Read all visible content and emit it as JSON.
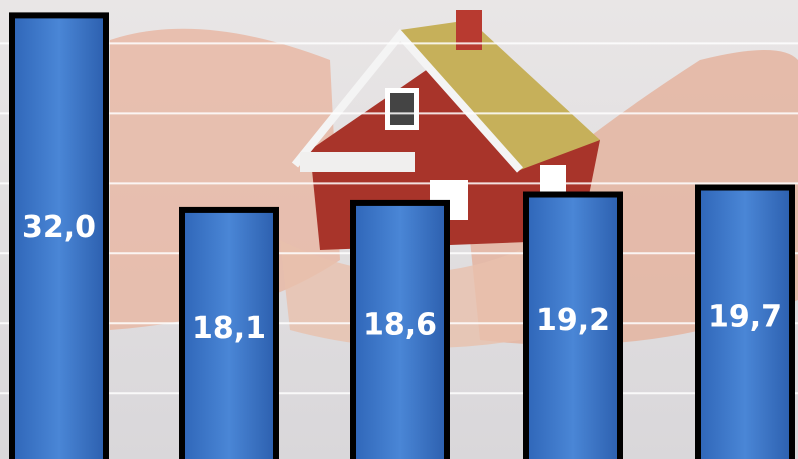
{
  "chart_data": {
    "type": "bar",
    "categories": [
      null,
      null,
      null,
      null,
      null
    ],
    "values": [
      32.0,
      18.1,
      18.6,
      19.2,
      19.7
    ],
    "value_labels": [
      "32,0",
      "18,1",
      "18,6",
      "19,2",
      "19,7"
    ],
    "color": "#3d79c9",
    "ylim": [
      0.3,
      33.1
    ],
    "yticks": [
      5,
      10,
      15,
      20,
      25,
      30
    ],
    "grid": true
  }
}
